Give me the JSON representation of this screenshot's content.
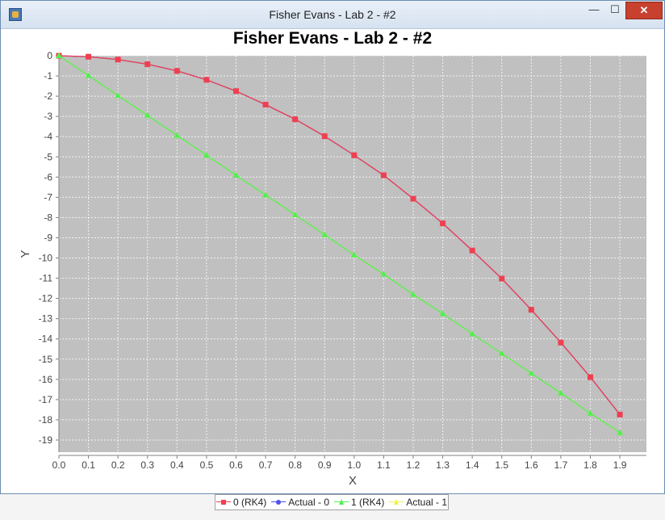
{
  "window": {
    "title": "Fisher Evans - Lab 2 - #2",
    "controls": {
      "minimize": "—",
      "maximize": "☐",
      "close": "✕"
    }
  },
  "chart_data": {
    "type": "line",
    "title": "Fisher Evans - Lab 2 - #2",
    "xlabel": "X",
    "ylabel": "Y",
    "xlim": [
      0,
      1.99
    ],
    "ylim": [
      -19.6,
      0
    ],
    "grid": true,
    "legend_position": "bottom",
    "xticks": [
      0.0,
      0.1,
      0.2,
      0.3,
      0.4,
      0.5,
      0.6,
      0.7,
      0.8,
      0.9,
      1.0,
      1.1,
      1.2,
      1.3,
      1.4,
      1.5,
      1.6,
      1.7,
      1.8,
      1.9
    ],
    "yticks": [
      0,
      -1,
      -2,
      -3,
      -4,
      -5,
      -6,
      -7,
      -8,
      -9,
      -10,
      -11,
      -12,
      -13,
      -14,
      -15,
      -16,
      -17,
      -18,
      -19
    ],
    "x": [
      0.0,
      0.1,
      0.2,
      0.3,
      0.4,
      0.5,
      0.6,
      0.7,
      0.8,
      0.9,
      1.0,
      1.1,
      1.2,
      1.3,
      1.4,
      1.5,
      1.6,
      1.7,
      1.8,
      1.9
    ],
    "series": [
      {
        "name": "0 (RK4)",
        "color": "#f04050",
        "marker": "square",
        "values": [
          0,
          -0.05,
          -0.19,
          -0.42,
          -0.75,
          -1.19,
          -1.75,
          -2.42,
          -3.14,
          -3.98,
          -4.92,
          -5.91,
          -7.07,
          -8.29,
          -9.63,
          -11.02,
          -12.56,
          -14.18,
          -15.89,
          -17.74
        ]
      },
      {
        "name": "Actual - 0",
        "color": "#5050f0",
        "marker": "circle",
        "values": [
          0,
          -0.05,
          -0.19,
          -0.42,
          -0.75,
          -1.19,
          -1.75,
          -2.42,
          -3.14,
          -3.98,
          -4.92,
          -5.91,
          -7.07,
          -8.29,
          -9.63,
          -11.02,
          -12.56,
          -14.18,
          -15.89,
          -17.74
        ]
      },
      {
        "name": "1 (RK4)",
        "color": "#50f050",
        "marker": "triangle",
        "values": [
          0,
          -0.98,
          -1.97,
          -2.95,
          -3.94,
          -4.92,
          -5.91,
          -6.89,
          -7.86,
          -8.85,
          -9.85,
          -10.8,
          -11.8,
          -12.75,
          -13.75,
          -14.72,
          -15.7,
          -16.68,
          -17.68,
          -18.63
        ]
      },
      {
        "name": "Actual - 1",
        "color": "#f0f050",
        "marker": "triangle",
        "values": [
          0,
          -0.98,
          -1.97,
          -2.95,
          -3.94,
          -4.92,
          -5.91,
          -6.89,
          -7.86,
          -8.85,
          -9.85,
          -10.8,
          -11.8,
          -12.75,
          -13.75,
          -14.72,
          -15.7,
          -16.68,
          -17.68,
          -18.63
        ]
      }
    ]
  }
}
